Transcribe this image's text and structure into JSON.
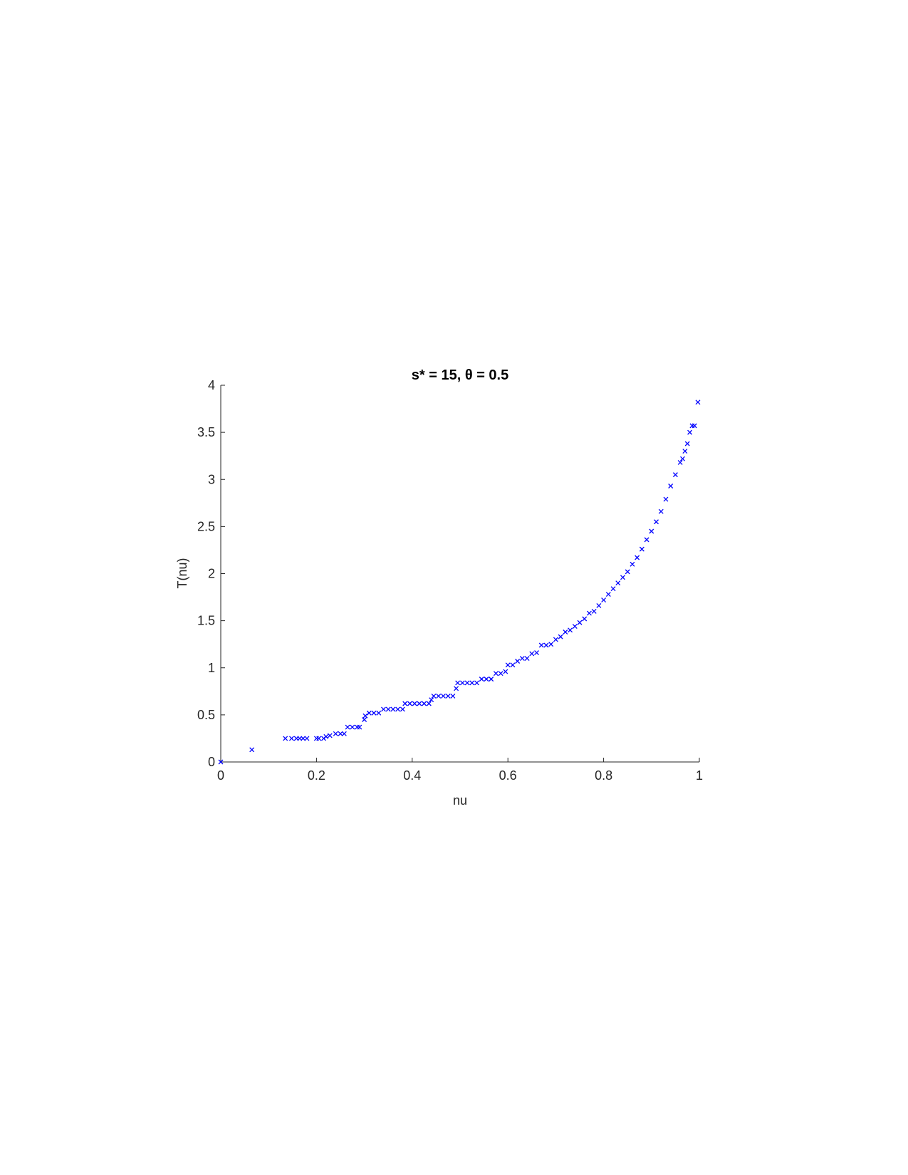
{
  "chart_data": {
    "type": "scatter",
    "title": "s* = 15, θ = 0.5",
    "x_label": "nu",
    "y_label": "T(nu)",
    "color": "#0000ff",
    "marker": "x",
    "xlim": [
      0,
      1
    ],
    "ylim": [
      0,
      4
    ],
    "xticks": [
      0,
      0.2,
      0.4,
      0.6,
      0.8,
      1
    ],
    "yticks": [
      0,
      0.5,
      1,
      1.5,
      2,
      2.5,
      3,
      3.5,
      4
    ],
    "x": [
      0,
      0.065,
      0.135,
      0.148,
      0.158,
      0.165,
      0.172,
      0.18,
      0.2,
      0.205,
      0.215,
      0.22,
      0.228,
      0.24,
      0.25,
      0.258,
      0.265,
      0.275,
      0.285,
      0.29,
      0.3,
      0.302,
      0.31,
      0.32,
      0.33,
      0.34,
      0.35,
      0.36,
      0.37,
      0.38,
      0.385,
      0.395,
      0.405,
      0.415,
      0.425,
      0.435,
      0.44,
      0.445,
      0.455,
      0.465,
      0.475,
      0.485,
      0.492,
      0.495,
      0.505,
      0.515,
      0.525,
      0.535,
      0.545,
      0.555,
      0.565,
      0.575,
      0.585,
      0.595,
      0.6,
      0.61,
      0.62,
      0.63,
      0.64,
      0.65,
      0.66,
      0.67,
      0.68,
      0.69,
      0.7,
      0.71,
      0.72,
      0.73,
      0.74,
      0.75,
      0.76,
      0.77,
      0.78,
      0.79,
      0.8,
      0.81,
      0.82,
      0.83,
      0.84,
      0.85,
      0.86,
      0.87,
      0.88,
      0.89,
      0.9,
      0.91,
      0.92,
      0.93,
      0.94,
      0.95,
      0.96,
      0.965,
      0.97,
      0.975,
      0.98,
      0.985,
      0.99,
      0.997
    ],
    "values": [
      0,
      0.13,
      0.25,
      0.25,
      0.25,
      0.25,
      0.25,
      0.25,
      0.25,
      0.25,
      0.25,
      0.27,
      0.28,
      0.3,
      0.3,
      0.3,
      0.37,
      0.37,
      0.37,
      0.37,
      0.45,
      0.49,
      0.52,
      0.52,
      0.52,
      0.56,
      0.56,
      0.56,
      0.56,
      0.56,
      0.62,
      0.62,
      0.62,
      0.62,
      0.62,
      0.62,
      0.66,
      0.7,
      0.7,
      0.7,
      0.7,
      0.7,
      0.78,
      0.84,
      0.84,
      0.84,
      0.84,
      0.84,
      0.88,
      0.88,
      0.88,
      0.94,
      0.94,
      0.96,
      1.03,
      1.03,
      1.07,
      1.1,
      1.1,
      1.15,
      1.16,
      1.24,
      1.24,
      1.25,
      1.3,
      1.33,
      1.38,
      1.4,
      1.44,
      1.48,
      1.52,
      1.58,
      1.6,
      1.66,
      1.72,
      1.78,
      1.84,
      1.9,
      1.96,
      2.02,
      2.1,
      2.17,
      2.26,
      2.36,
      2.45,
      2.55,
      2.66,
      2.79,
      2.93,
      3.05,
      3.18,
      3.22,
      3.3,
      3.38,
      3.5,
      3.57,
      3.57,
      3.82
    ]
  }
}
